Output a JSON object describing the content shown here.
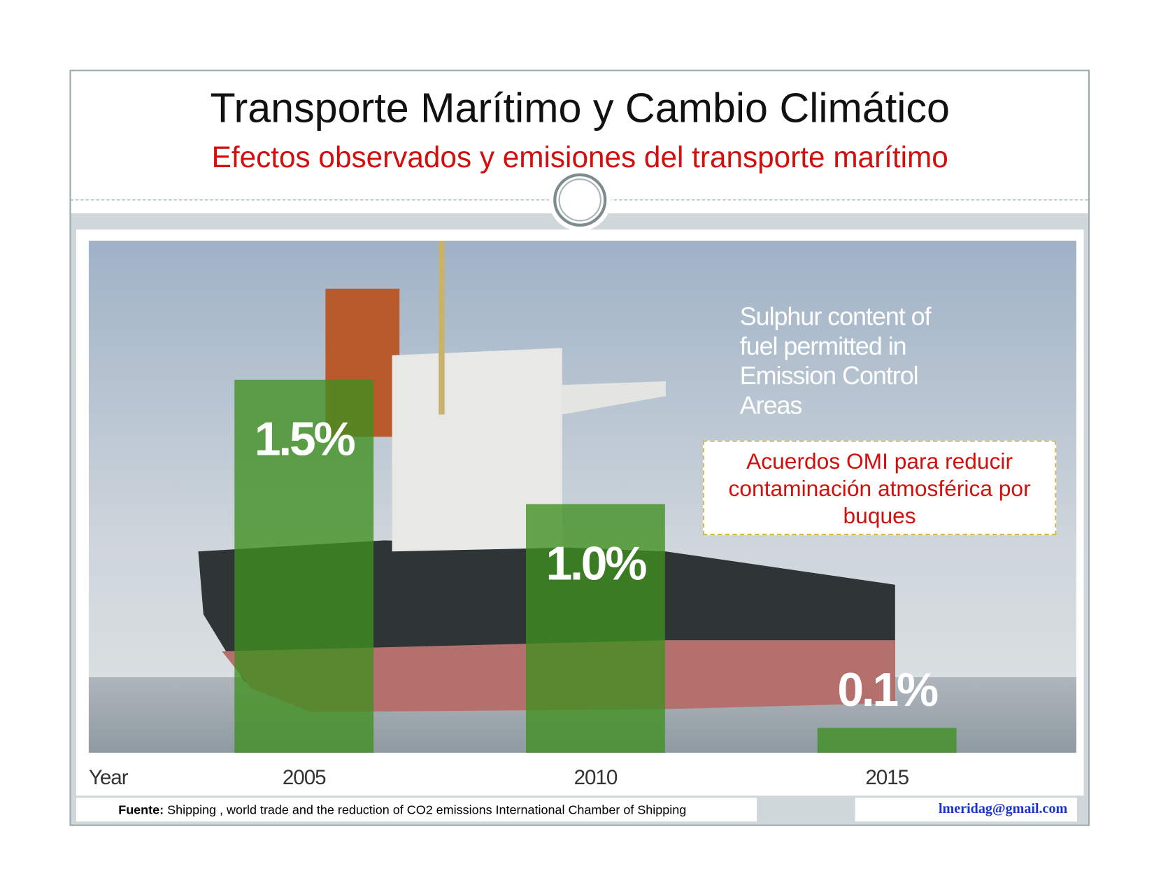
{
  "slide": {
    "title": "Transporte Marítimo y Cambio Climático",
    "subtitle": "Efectos observados y emisiones del transporte marítimo",
    "note": "Acuerdos OMI para reducir contaminación atmosférica por buques",
    "source_label": "Fuente:",
    "source_text": "Shipping , world trade and the reduction of CO2 emissions International Chamber of Shipping",
    "email": "lmeridag@gmail.com"
  },
  "chart_data": {
    "type": "bar",
    "title": "Sulphur content of fuel permitted in Emission Control Areas",
    "x_label": "Year",
    "categories": [
      "2005",
      "2010",
      "2015"
    ],
    "values": [
      1.5,
      1.0,
      0.1
    ],
    "value_labels": [
      "1.5%",
      "1.0%",
      "0.1%"
    ],
    "color": "#3f8f1f"
  }
}
